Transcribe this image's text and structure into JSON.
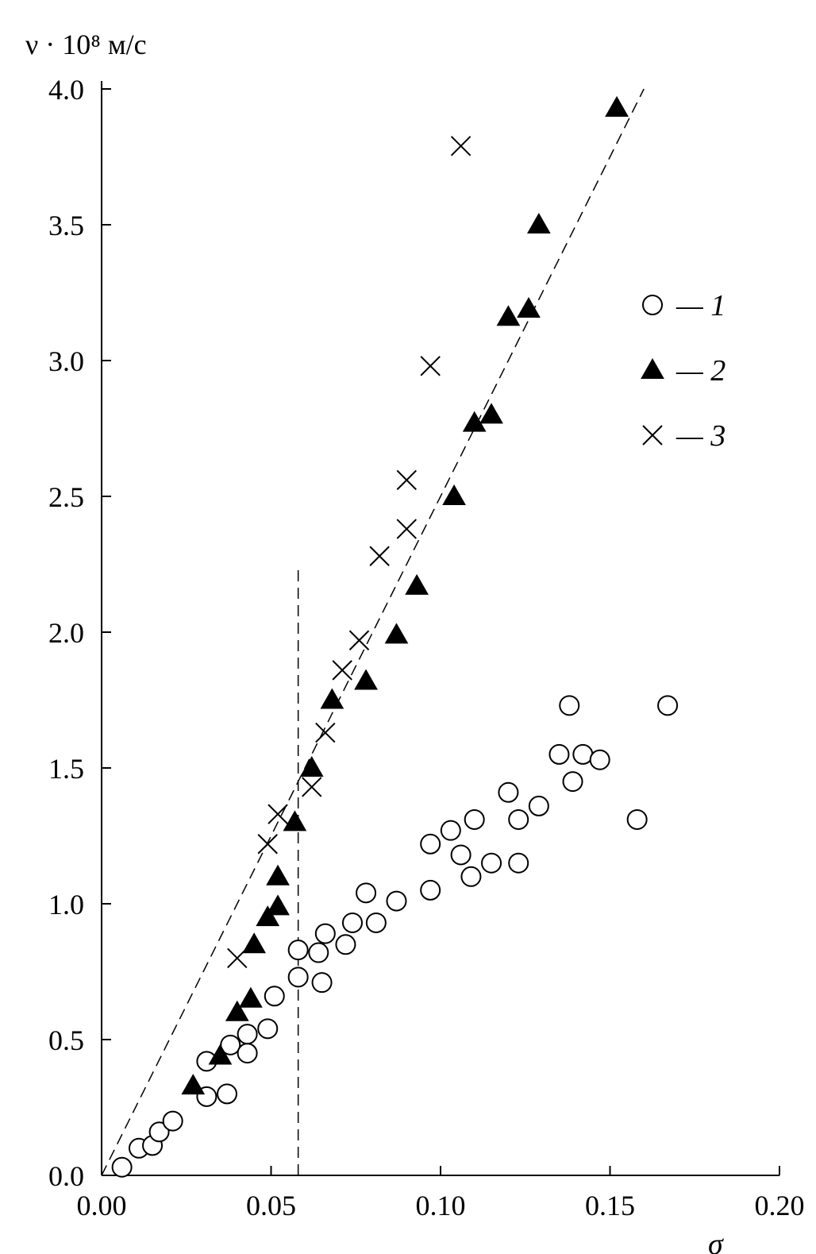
{
  "chart_data": {
    "type": "scatter",
    "ylabel": "ν · 10⁸ м/с",
    "xlabel": "σ",
    "xlim": [
      0.0,
      0.2
    ],
    "ylim": [
      0.0,
      4.0
    ],
    "x_ticks": [
      "0.00",
      "0.05",
      "0.10",
      "0.15",
      "0.20"
    ],
    "y_ticks": [
      "0.0",
      "0.5",
      "1.0",
      "1.5",
      "2.0",
      "2.5",
      "3.0",
      "3.5",
      "4.0"
    ],
    "grid": false,
    "legend_position": "right",
    "series": [
      {
        "name": "— 1",
        "marker": "circle-open",
        "points": [
          [
            0.006,
            0.03
          ],
          [
            0.011,
            0.1
          ],
          [
            0.015,
            0.11
          ],
          [
            0.017,
            0.16
          ],
          [
            0.021,
            0.2
          ],
          [
            0.031,
            0.42
          ],
          [
            0.031,
            0.29
          ],
          [
            0.037,
            0.3
          ],
          [
            0.038,
            0.48
          ],
          [
            0.043,
            0.52
          ],
          [
            0.043,
            0.45
          ],
          [
            0.049,
            0.54
          ],
          [
            0.051,
            0.66
          ],
          [
            0.058,
            0.83
          ],
          [
            0.058,
            0.73
          ],
          [
            0.064,
            0.82
          ],
          [
            0.065,
            0.71
          ],
          [
            0.066,
            0.89
          ],
          [
            0.072,
            0.85
          ],
          [
            0.074,
            0.93
          ],
          [
            0.078,
            1.04
          ],
          [
            0.081,
            0.93
          ],
          [
            0.087,
            1.01
          ],
          [
            0.097,
            1.05
          ],
          [
            0.097,
            1.22
          ],
          [
            0.103,
            1.27
          ],
          [
            0.106,
            1.18
          ],
          [
            0.109,
            1.1
          ],
          [
            0.11,
            1.31
          ],
          [
            0.115,
            1.15
          ],
          [
            0.12,
            1.41
          ],
          [
            0.123,
            1.31
          ],
          [
            0.123,
            1.15
          ],
          [
            0.129,
            1.36
          ],
          [
            0.135,
            1.55
          ],
          [
            0.138,
            1.73
          ],
          [
            0.139,
            1.45
          ],
          [
            0.142,
            1.55
          ],
          [
            0.147,
            1.53
          ],
          [
            0.158,
            1.31
          ],
          [
            0.167,
            1.73
          ]
        ]
      },
      {
        "name": "— 2",
        "marker": "triangle-filled",
        "points": [
          [
            0.027,
            0.33
          ],
          [
            0.035,
            0.44
          ],
          [
            0.04,
            0.6
          ],
          [
            0.044,
            0.65
          ],
          [
            0.045,
            0.85
          ],
          [
            0.049,
            0.95
          ],
          [
            0.052,
            0.99
          ],
          [
            0.052,
            1.1
          ],
          [
            0.057,
            1.3
          ],
          [
            0.062,
            1.5
          ],
          [
            0.068,
            1.75
          ],
          [
            0.078,
            1.82
          ],
          [
            0.087,
            1.99
          ],
          [
            0.093,
            2.17
          ],
          [
            0.104,
            2.5
          ],
          [
            0.11,
            2.77
          ],
          [
            0.115,
            2.8
          ],
          [
            0.12,
            3.16
          ],
          [
            0.126,
            3.19
          ],
          [
            0.129,
            3.5
          ],
          [
            0.152,
            3.93
          ]
        ]
      },
      {
        "name": "— 3",
        "marker": "cross",
        "points": [
          [
            0.04,
            0.8
          ],
          [
            0.049,
            1.22
          ],
          [
            0.052,
            1.33
          ],
          [
            0.062,
            1.43
          ],
          [
            0.066,
            1.63
          ],
          [
            0.071,
            1.86
          ],
          [
            0.076,
            1.97
          ],
          [
            0.082,
            2.28
          ],
          [
            0.09,
            2.38
          ],
          [
            0.09,
            2.56
          ],
          [
            0.097,
            2.98
          ],
          [
            0.106,
            3.79
          ]
        ]
      }
    ],
    "reference_lines": [
      {
        "style": "dashed",
        "x": [
          0.0,
          0.16
        ],
        "y": [
          0.0,
          4.0
        ]
      },
      {
        "style": "dashed",
        "x": [
          0.058,
          0.058
        ],
        "y": [
          0.0,
          2.25
        ]
      }
    ]
  }
}
